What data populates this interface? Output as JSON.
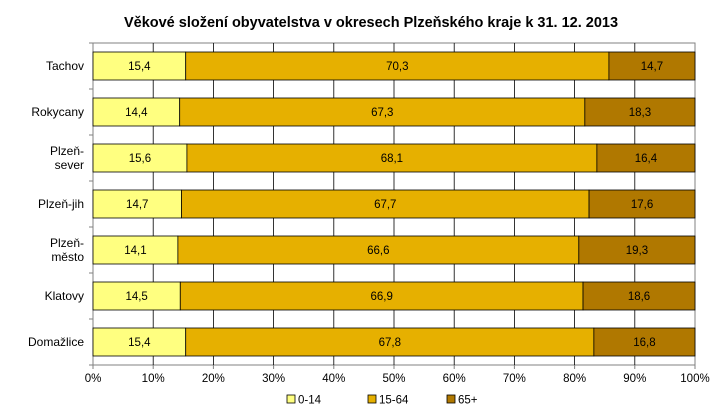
{
  "chart_data": {
    "type": "bar",
    "orientation": "horizontal",
    "stacked": "percent",
    "title": "Věkové složení obyvatelstva v okresech Plzeňského kraje k 31. 12. 2013",
    "xlabel": "",
    "ylabel": "",
    "xlim": [
      0,
      100
    ],
    "x_ticks": [
      "0%",
      "10%",
      "20%",
      "30%",
      "40%",
      "50%",
      "60%",
      "70%",
      "80%",
      "90%",
      "100%"
    ],
    "grid": true,
    "legend_position": "bottom",
    "categories": [
      [
        "Tachov"
      ],
      [
        "Rokycany"
      ],
      [
        "Plzeň-",
        "sever"
      ],
      [
        "Plzeň-jih"
      ],
      [
        "Plzeň-",
        "město"
      ],
      [
        "Klatovy"
      ],
      [
        "Domažlice"
      ]
    ],
    "series": [
      {
        "name": "0-14",
        "color": "#ffff80",
        "values": [
          15.4,
          14.4,
          15.6,
          14.7,
          14.1,
          14.5,
          15.4
        ],
        "labels": [
          "15,4",
          "14,4",
          "15,6",
          "14,7",
          "14,1",
          "14,5",
          "15,4"
        ]
      },
      {
        "name": "15-64",
        "color": "#e6b000",
        "values": [
          70.3,
          67.3,
          68.1,
          67.7,
          66.6,
          66.9,
          67.8
        ],
        "labels": [
          "70,3",
          "67,3",
          "68,1",
          "67,7",
          "66,6",
          "66,9",
          "67,8"
        ]
      },
      {
        "name": "65+",
        "color": "#b07800",
        "values": [
          14.7,
          18.3,
          16.4,
          17.6,
          19.3,
          18.6,
          16.8
        ],
        "labels": [
          "14,7",
          "18,3",
          "16,4",
          "17,6",
          "19,3",
          "18,6",
          "16,8"
        ]
      }
    ]
  }
}
